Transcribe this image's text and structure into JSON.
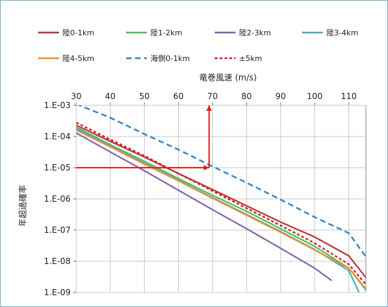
{
  "chart_data": {
    "type": "line",
    "title": "",
    "xlabel": "竜巻風速 (m/s)",
    "ylabel": "年超過確率",
    "xlim": [
      30,
      115
    ],
    "ylim": [
      1e-09,
      0.001
    ],
    "y_scale": "log",
    "x_ticks": [
      30,
      40,
      50,
      60,
      70,
      80,
      90,
      100,
      110
    ],
    "x_tick_labels": [
      "30",
      "40",
      "50",
      "60",
      "70",
      "80",
      "90",
      "100",
      "110"
    ],
    "y_ticks": [
      0.001,
      0.0001,
      1e-05,
      1e-06,
      1e-07,
      1e-08,
      1e-09
    ],
    "y_tick_labels": [
      "1.E-03",
      "1.E-04",
      "1.E-05",
      "1.E-06",
      "1.E-07",
      "1.E-08",
      "1.E-09"
    ],
    "grid": true,
    "x_axis_position": "top",
    "legend_position": "top",
    "series": [
      {
        "name": "陸0-1km",
        "color": "#b5383b",
        "dash": "solid",
        "x": [
          30,
          40,
          50,
          60,
          70,
          80,
          90,
          100,
          110,
          115
        ],
        "y": [
          0.00023,
          7e-05,
          2.2e-05,
          6.5e-06,
          2e-06,
          6e-07,
          1.8e-07,
          6e-08,
          1.5e-08,
          3e-09
        ]
      },
      {
        "name": "陸1-2km",
        "color": "#4fbf5a",
        "dash": "solid",
        "x": [
          30,
          40,
          50,
          60,
          70,
          80,
          90,
          100,
          110,
          115
        ],
        "y": [
          0.0002,
          5.5e-05,
          1.6e-05,
          4.5e-06,
          1.3e-06,
          4e-07,
          1.1e-07,
          3e-08,
          6e-09,
          1.2e-09
        ]
      },
      {
        "name": "陸2-3km",
        "color": "#8066a8",
        "dash": "solid",
        "x": [
          30,
          40,
          50,
          60,
          70,
          80,
          90,
          100,
          105
        ],
        "y": [
          0.00013,
          3.2e-05,
          8e-06,
          1.9e-06,
          4.5e-07,
          1.1e-07,
          2.6e-08,
          6e-09,
          2.4e-09
        ]
      },
      {
        "name": "陸3-4km",
        "color": "#4aaecc",
        "dash": "solid",
        "x": [
          30,
          40,
          50,
          60,
          70,
          80,
          90,
          100,
          110,
          113
        ],
        "y": [
          0.00018,
          5e-05,
          1.4e-05,
          4e-06,
          1.1e-06,
          3.2e-07,
          9e-08,
          2.4e-08,
          5e-09,
          1e-09
        ]
      },
      {
        "name": "陸4-5km",
        "color": "#eb8f2f",
        "dash": "solid",
        "x": [
          30,
          40,
          50,
          60,
          70,
          80,
          90,
          100,
          110,
          115
        ],
        "y": [
          0.00016,
          4.7e-05,
          1.3e-05,
          3.8e-06,
          1.05e-06,
          3e-07,
          8.5e-08,
          2.3e-08,
          6e-09,
          1.3e-09
        ]
      },
      {
        "name": "海側0-1km",
        "color": "#2f86c9",
        "dash": "dashed",
        "x": [
          30,
          40,
          50,
          60,
          70,
          80,
          90,
          100,
          110,
          115
        ],
        "y": [
          0.0011,
          0.0004,
          0.00012,
          3.8e-05,
          1.1e-05,
          3.3e-06,
          9.5e-07,
          2.6e-07,
          8e-08,
          1.4e-08
        ]
      },
      {
        "name": "±5km",
        "color": "#d4202a",
        "dash": "dotted",
        "x": [
          30,
          40,
          50,
          60,
          70,
          80,
          90,
          100,
          110,
          115
        ],
        "y": [
          0.00028,
          8e-05,
          2.4e-05,
          6.5e-06,
          1.8e-06,
          5e-07,
          1.4e-07,
          3.8e-08,
          8e-09,
          1.8e-09
        ]
      }
    ],
    "annotations": [
      {
        "type": "arrow",
        "color": "#e02020",
        "from": [
          30,
          1e-05
        ],
        "to": [
          69,
          1e-05
        ]
      },
      {
        "type": "arrow",
        "color": "#e02020",
        "from": [
          69,
          1e-05
        ],
        "to": [
          69,
          0.001
        ]
      }
    ]
  }
}
